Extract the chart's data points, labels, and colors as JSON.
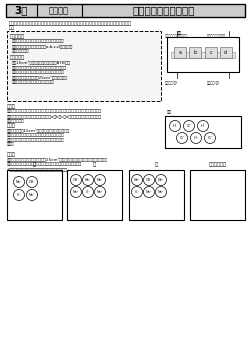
{
  "title_grade": "3年",
  "title_subject": "化学分野",
  "title_topic": "「酸とアルカリと塩」",
  "intro_text1": "塩酸と水酸化ナトリウム水溶液を用いて、次のような実験をしました。次の問題に答えなさ",
  "intro_text2": "い。",
  "exp_title1": "【実験１】",
  "exp1_l1": "図１のような装置で、中央のろ紙に電源をしみ",
  "exp1_l2": "こませて、電圧をかけたら図中a,b,c,dのリトマス",
  "exp1_l3": "紙が変色した。",
  "exp_title2": "【実験２】",
  "exp2_l1": "塩酸15cm³をビーカーにとり青色のBTB溶液",
  "exp2_l2": "を２～３滴加えて黄色にし、そこに水酸化ナトリ",
  "exp2_l3": "ウム水溶液をゆっくり加えていったところ、水",
  "exp2_l4": "酸化ナトリウム水溶液を25cm³加えたところ",
  "exp2_l5": "で水溶液全体がうすい緑色になった。",
  "fig1_label": "図１",
  "fig1_top_left": "水酸化ナトリウム水溶液",
  "fig1_top_right": "塩酸をしみこませた",
  "fig1_bot_left": "電源装置(＋)",
  "fig1_bot_right": "電源装置(－)",
  "q1_num": "問題１",
  "q1_l1": "実験１で、中央のろ紙に塩酸の代わりに水酸化ナトリウム水溶液をしみこませたら、",
  "q1_l2": "図１のどのリトマス紙が変色しますか。a、b、c、dの中から１つ選び、その記号",
  "q1_l3": "を書きなさい。",
  "q2_num": "問題２",
  "q2_l1": "実験２で、塩酸15cm³のモデルを、あなたの友達が",
  "q2_l2": "図２のように示しました。あなたは、このモデルで",
  "q2_l3": "よいと思いますか。あなたの考えるモデルを書きな",
  "q2_l4": "さい。",
  "fig2_label": "図２",
  "q3_num": "問題３",
  "q3_l1": "実験２で、水酸化ナトリウム水溶液25cm³のモデルで正しいのは、次のア～エのどれ",
  "q3_l2": "ですか、あなたの考えに近いものを一つ選び、記号で答えなさい。",
  "q3_l3": "※エの場合は、あなたの考えるモデルを書きなさい。",
  "opt_a": "ア",
  "opt_b": "イ",
  "opt_c": "ウ",
  "opt_d": "エ（その他）",
  "bg": "#ffffff",
  "header_bg": "#cccccc",
  "exp_box_bg": "#f5f5f5"
}
